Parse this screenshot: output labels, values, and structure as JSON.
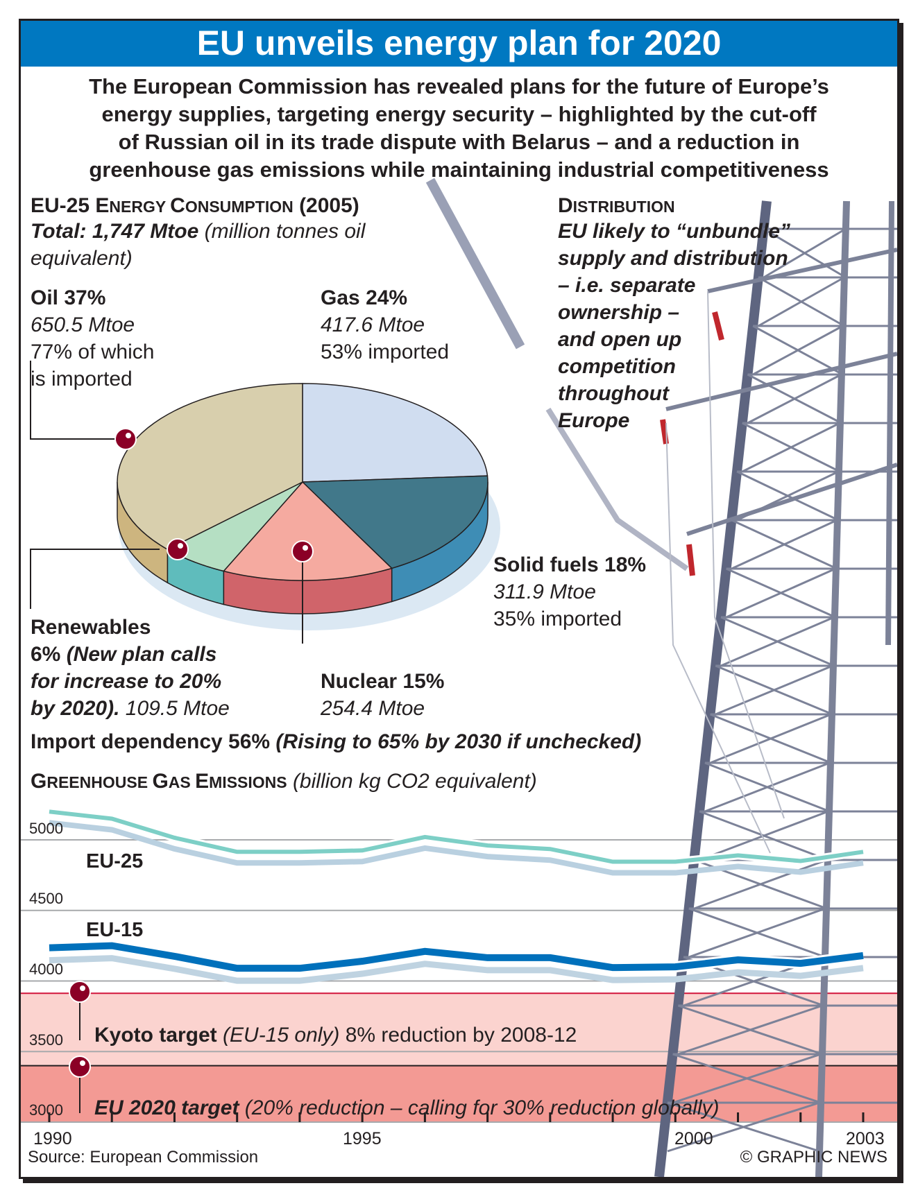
{
  "title": "EU unveils energy plan for 2020",
  "intro": [
    "The European Commission has revealed plans for the future of Europe’s",
    "energy supplies, targeting energy security – highlighted by the cut-off",
    "of Russian oil in its trade dispute with Belarus – and a reduction in",
    "greenhouse gas emissions while maintaining industrial competitiveness"
  ],
  "consumption": {
    "heading_a": "EU-25 E",
    "heading_b": "NERGY ",
    "heading_c": "C",
    "heading_d": "ONSUMPTION",
    "heading_e": " (2005)",
    "total_bold": "Total: 1,747 Mtoe",
    "total_rest": " (million tonnes oil",
    "total_rest2": "equivalent)"
  },
  "labels": {
    "oil": {
      "name": "Oil",
      "pct": "37%",
      "mtoe": "650.5 Mtoe",
      "note1": "77% of which",
      "note2": "is imported"
    },
    "gas": {
      "name": "Gas",
      "pct": "24%",
      "mtoe": "417.6 Mtoe",
      "note1": "53% imported"
    },
    "solid": {
      "name": "Solid fuels",
      "pct": "18%",
      "mtoe": "311.9 Mtoe",
      "note1": "35% imported"
    },
    "nuclear": {
      "name": "Nuclear",
      "pct": "15%",
      "mtoe": "254.4 Mtoe"
    },
    "renewables": {
      "name": "Renewables",
      "line2_pct": "6%",
      "line2_note": " (New plan calls",
      "line3": "for increase to 20%",
      "line4_bold": "by 2020).",
      "line4_mtoe": " 109.5 Mtoe"
    }
  },
  "import_dependency": {
    "bold": "Import dependency 56%",
    "italic": " (Rising to 65% by 2030 if unchecked)"
  },
  "distribution": {
    "heading_a": "D",
    "heading_b": "ISTRIBUTION",
    "lines": [
      "EU likely to “unbundle”",
      "supply and distribution",
      "– i.e. separate",
      "ownership –",
      "and open up",
      "competition",
      "throughout",
      "Europe"
    ]
  },
  "emissions": {
    "heading_a": "G",
    "heading_b": "REENHOUSE ",
    "heading_c": "G",
    "heading_d": "AS ",
    "heading_e": "E",
    "heading_f": "MISSIONS",
    "unit": " (billion kg CO2 equivalent)",
    "kyoto_bold": "Kyoto target",
    "kyoto_italic": " (EU-15 only)",
    "kyoto_rest": " 8% reduction by 2008-12",
    "eu2020_bold": "EU 2020 target",
    "eu2020_italic": " (20% reduction – calling for 30% reduction globally)"
  },
  "source": "Source: European Commission",
  "credit": "© GRAPHIC NEWS",
  "colors": {
    "header": "#0078c1",
    "eu25": "#7dcfc6",
    "eu15": "#0070bb",
    "pin": "#8b0026",
    "kyoto_band": "#fbd3cf",
    "eu2020_band": "#f39a94"
  },
  "chart_data": [
    {
      "type": "pie",
      "title": "EU-25 Energy Consumption (2005)",
      "categories": [
        "Gas",
        "Solid fuels",
        "Nuclear",
        "Renewables",
        "Oil"
      ],
      "values": [
        24,
        18,
        15,
        6,
        37
      ],
      "mtoe": [
        417.6,
        311.9,
        254.4,
        109.5,
        650.5
      ],
      "colors": [
        "#d0ddf0",
        "#41788a",
        "#f5aaa0",
        "#b5dfc3",
        "#d8cfad"
      ],
      "side_colors": [
        "#a9c4e6",
        "#3e8db5",
        "#d0646a",
        "#5fbcbc",
        "#cdb57f"
      ]
    },
    {
      "type": "line",
      "title": "Greenhouse Gas Emissions",
      "ylabel": "billion kg CO2 equivalent",
      "x": [
        1990,
        1991,
        1992,
        1993,
        1994,
        1995,
        1996,
        1997,
        1998,
        1999,
        2000,
        2001,
        2002,
        2003
      ],
      "x_tick_labels": [
        "1990",
        "1995",
        "2000",
        "2003"
      ],
      "y_tick_labels": [
        "5000",
        "4500",
        "4000",
        "3500",
        "3000"
      ],
      "ylim": [
        3000,
        5250
      ],
      "grid": true,
      "series": [
        {
          "name": "EU-25",
          "color": "#7dcfc6",
          "values": [
            5200,
            5150,
            5015,
            4915,
            4915,
            4925,
            5020,
            4960,
            4935,
            4845,
            4845,
            4890,
            4850,
            4915
          ]
        },
        {
          "name": "EU-15",
          "color": "#0070bb",
          "values": [
            4235,
            4250,
            4175,
            4090,
            4090,
            4140,
            4210,
            4165,
            4165,
            4095,
            4100,
            4150,
            4125,
            4180
          ]
        }
      ],
      "reference_lines": [
        {
          "name": "Kyoto target",
          "value": 3913
        },
        {
          "name": "EU 2020 target",
          "value": 3400
        }
      ]
    }
  ]
}
